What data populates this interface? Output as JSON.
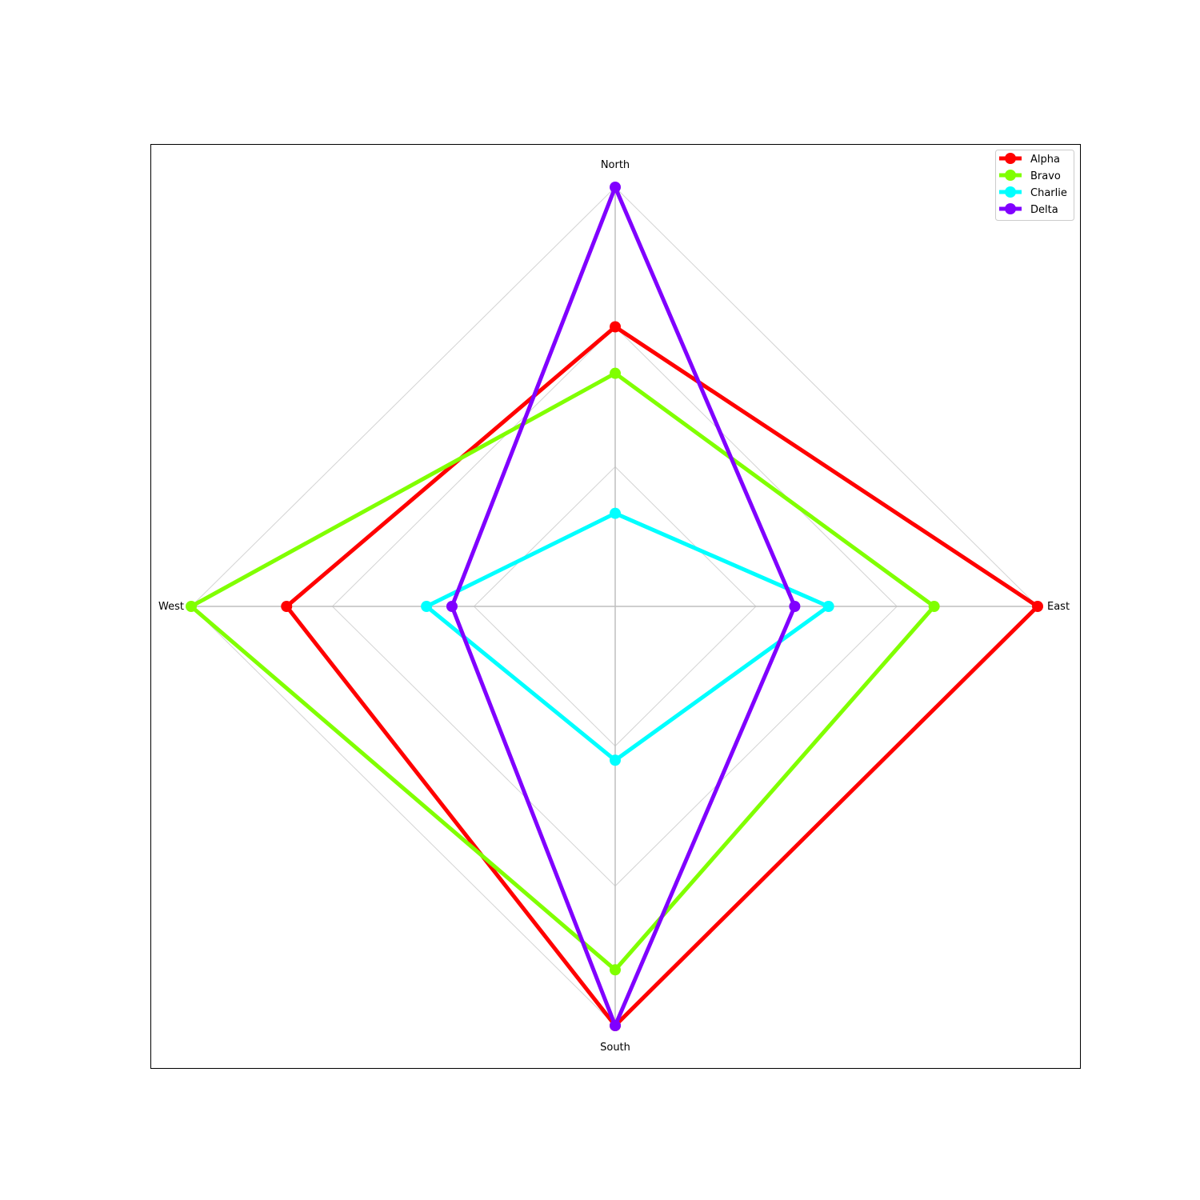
{
  "chart_data": {
    "type": "radar",
    "title": "",
    "axes": [
      "North",
      "East",
      "South",
      "West"
    ],
    "rmax": 1.0,
    "grid_levels": [
      0.333,
      0.667,
      1.0
    ],
    "grid": true,
    "legend_position": "top-right",
    "series": [
      {
        "name": "Alpha",
        "color": "#ff0000",
        "values": [
          0.667,
          1.0,
          1.0,
          0.775
        ]
      },
      {
        "name": "Bravo",
        "color": "#80ff00",
        "values": [
          0.556,
          0.755,
          0.867,
          1.0
        ]
      },
      {
        "name": "Charlie",
        "color": "#00ffff",
        "values": [
          0.222,
          0.505,
          0.367,
          0.445
        ]
      },
      {
        "name": "Delta",
        "color": "#8000ff",
        "values": [
          1.0,
          0.425,
          1.0,
          0.385
        ]
      }
    ]
  }
}
